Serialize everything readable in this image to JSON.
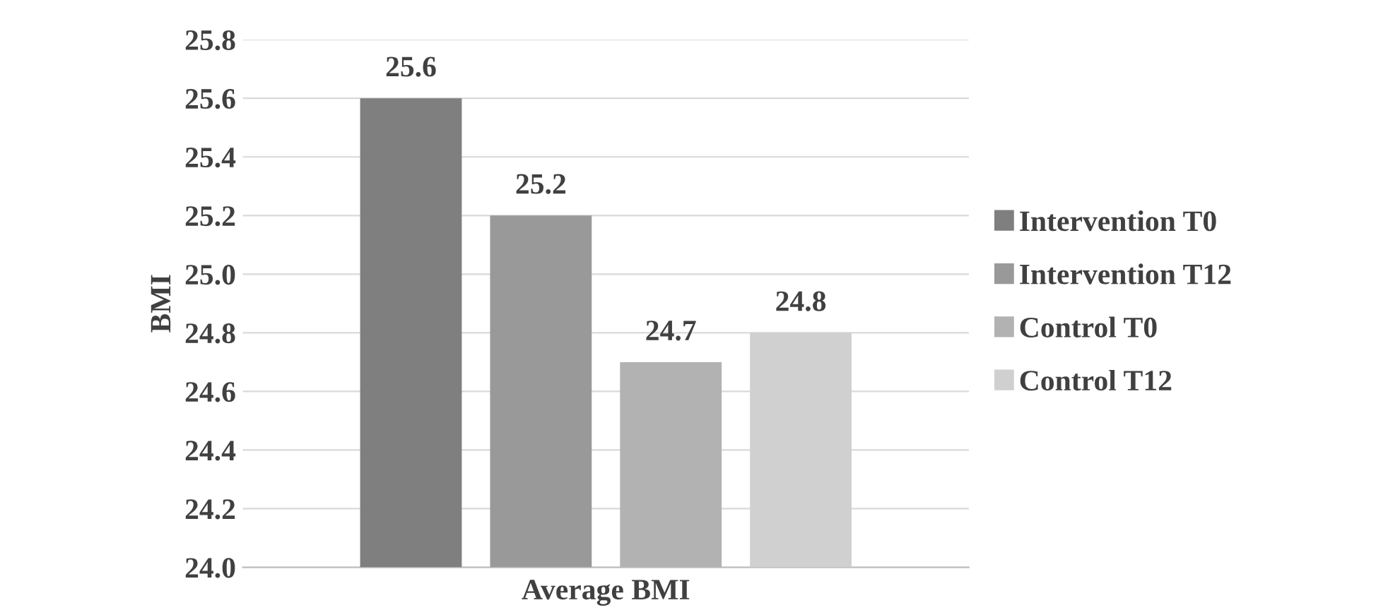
{
  "chart_data": {
    "type": "bar",
    "ylabel": "BMI",
    "categories": [
      "Average BMI"
    ],
    "series": [
      {
        "name": "Intervention T0",
        "color": "#7f7f7f",
        "values": [
          25.6
        ]
      },
      {
        "name": "Intervention T12",
        "color": "#999999",
        "values": [
          25.2
        ]
      },
      {
        "name": "Control T0",
        "color": "#b2b2b2",
        "values": [
          24.7
        ]
      },
      {
        "name": "Control T12",
        "color": "#d0d0d0",
        "values": [
          24.8
        ]
      }
    ],
    "ylim": [
      24,
      25.8
    ],
    "yticks": [
      {
        "value": 24,
        "label": "24.0"
      },
      24.2,
      24.4,
      24.6,
      24.8,
      {
        "value": 25,
        "label": "25.0"
      },
      25.2,
      25.4,
      25.6,
      25.8
    ],
    "grid": "y",
    "legend": "right",
    "data_labels": true
  }
}
